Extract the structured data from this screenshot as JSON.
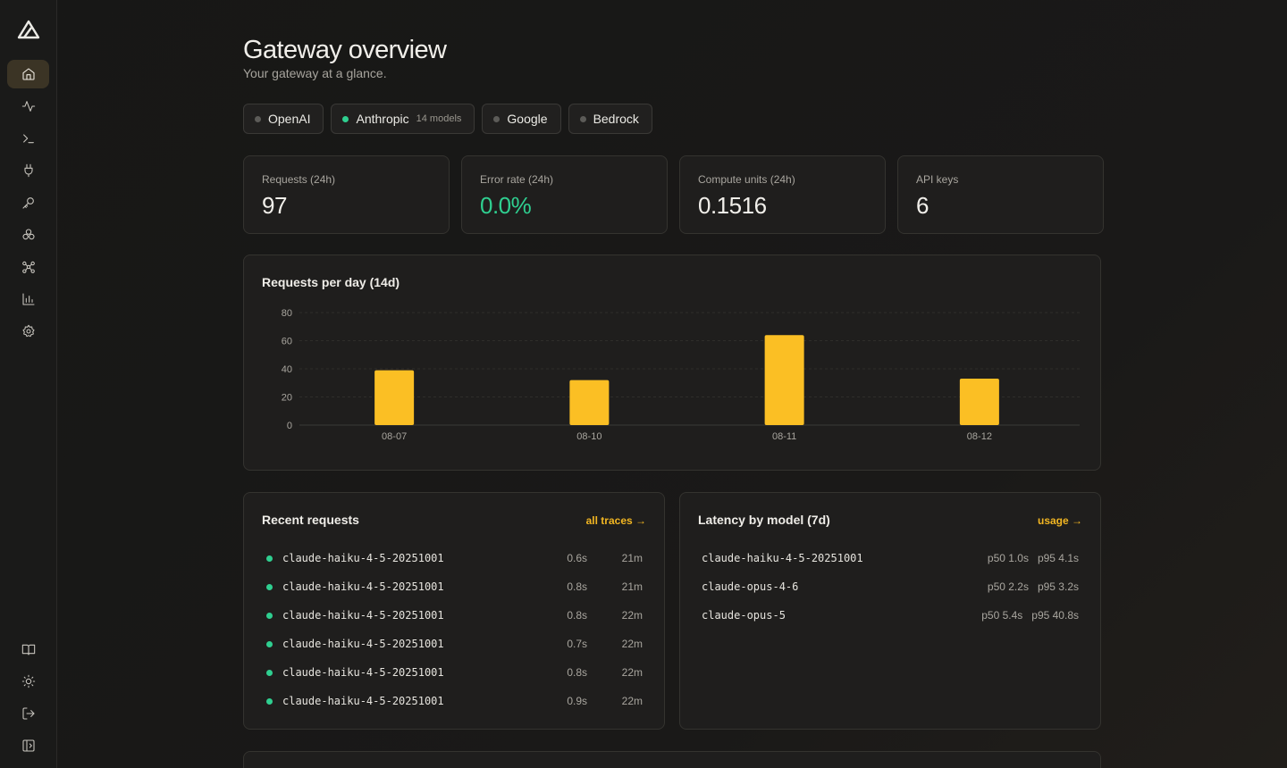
{
  "nav": {
    "top": [
      {
        "icon": "home-icon",
        "active": true
      },
      {
        "icon": "activity-icon",
        "active": false
      },
      {
        "icon": "terminal-icon",
        "active": false
      },
      {
        "icon": "plug-icon",
        "active": false
      },
      {
        "icon": "key-icon",
        "active": false
      },
      {
        "icon": "models-icon",
        "active": false
      },
      {
        "icon": "routing-icon",
        "active": false
      },
      {
        "icon": "bar-chart-icon",
        "active": false
      },
      {
        "icon": "gear-icon",
        "active": false
      }
    ],
    "bottom": [
      {
        "icon": "book-icon"
      },
      {
        "icon": "sun-icon"
      },
      {
        "icon": "logout-icon"
      },
      {
        "icon": "sidebar-toggle-icon"
      }
    ]
  },
  "header": {
    "title": "Gateway overview",
    "subtitle": "Your gateway at a glance."
  },
  "providers": [
    {
      "name": "OpenAI",
      "active": false,
      "meta": ""
    },
    {
      "name": "Anthropic",
      "active": true,
      "meta": "14 models"
    },
    {
      "name": "Google",
      "active": false,
      "meta": ""
    },
    {
      "name": "Bedrock",
      "active": false,
      "meta": ""
    }
  ],
  "stats": [
    {
      "label": "Requests (24h)",
      "value": "97"
    },
    {
      "label": "Error rate (24h)",
      "value": "0.0%"
    },
    {
      "label": "Compute units (24h)",
      "value": "0.1516"
    },
    {
      "label": "API keys",
      "value": "6"
    }
  ],
  "chart_data": {
    "type": "bar",
    "title": "Requests per day (14d)",
    "categories": [
      "08-07",
      "08-10",
      "08-11",
      "08-12"
    ],
    "values": [
      39,
      32,
      64,
      33
    ],
    "yticks": [
      0,
      20,
      40,
      60,
      80
    ],
    "ylim": [
      0,
      80
    ],
    "color": "#fbbf24",
    "grid": true
  },
  "recent": {
    "title": "Recent requests",
    "link": "all traces →",
    "rows": [
      {
        "model": "claude-haiku-4-5-20251001",
        "duration": "0.6s",
        "ago": "21m"
      },
      {
        "model": "claude-haiku-4-5-20251001",
        "duration": "0.8s",
        "ago": "21m"
      },
      {
        "model": "claude-haiku-4-5-20251001",
        "duration": "0.8s",
        "ago": "22m"
      },
      {
        "model": "claude-haiku-4-5-20251001",
        "duration": "0.7s",
        "ago": "22m"
      },
      {
        "model": "claude-haiku-4-5-20251001",
        "duration": "0.8s",
        "ago": "22m"
      },
      {
        "model": "claude-haiku-4-5-20251001",
        "duration": "0.9s",
        "ago": "22m"
      }
    ]
  },
  "latency": {
    "title": "Latency by model (7d)",
    "link": "usage →",
    "rows": [
      {
        "model": "claude-haiku-4-5-20251001",
        "p50": "p50 1.0s",
        "p95": "p95 4.1s"
      },
      {
        "model": "claude-opus-4-6",
        "p50": "p50 2.2s",
        "p95": "p95 3.2s"
      },
      {
        "model": "claude-opus-5",
        "p50": "p50 5.4s",
        "p95": "p95 40.8s"
      }
    ]
  },
  "colors": {
    "accent": "#f2b622",
    "success": "#2fcf90",
    "bar": "#fbbf24"
  }
}
